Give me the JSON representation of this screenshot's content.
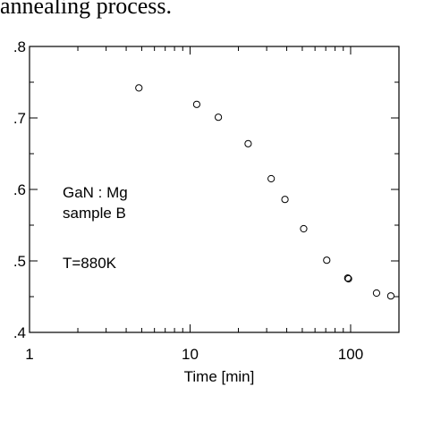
{
  "page_text": {
    "caption": "annealing process."
  },
  "chart_data": {
    "type": "scatter",
    "title": "",
    "xlabel": "Time [min]",
    "ylabel": "",
    "x_scale": "log",
    "xlim": [
      1,
      200
    ],
    "ylim": [
      0.4,
      0.8
    ],
    "grid": false,
    "x_ticks": [
      1,
      10,
      100
    ],
    "x_tick_labels": [
      "1",
      "10",
      "100"
    ],
    "y_ticks": [
      0.4,
      0.5,
      0.6,
      0.7,
      0.8
    ],
    "y_tick_labels": [
      ".4",
      ".5",
      ".6",
      ".7",
      ".8"
    ],
    "marker": "open-circle",
    "marker_color": "#000000",
    "annotations": [
      "GaN : Mg",
      "sample B",
      "T=880K"
    ],
    "points": [
      {
        "x": 4.8,
        "y": 0.742
      },
      {
        "x": 11,
        "y": 0.719
      },
      {
        "x": 15,
        "y": 0.701
      },
      {
        "x": 23,
        "y": 0.664
      },
      {
        "x": 32,
        "y": 0.615
      },
      {
        "x": 39,
        "y": 0.586
      },
      {
        "x": 51,
        "y": 0.545
      },
      {
        "x": 71,
        "y": 0.501
      },
      {
        "x": 96,
        "y": 0.476
      },
      {
        "x": 97,
        "y": 0.475
      },
      {
        "x": 145,
        "y": 0.455
      },
      {
        "x": 178,
        "y": 0.451
      }
    ]
  }
}
